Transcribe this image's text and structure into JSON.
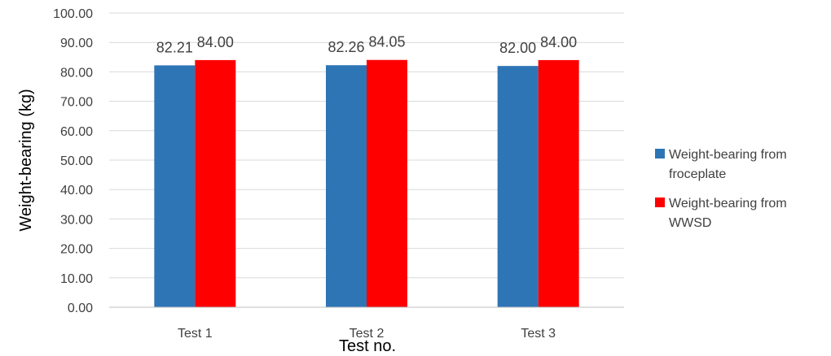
{
  "chart_data": {
    "type": "bar",
    "categories": [
      "Test 1",
      "Test 2",
      "Test 3"
    ],
    "series": [
      {
        "name": "Weight-bearing from froceplate",
        "legend_lines": [
          "Weight-bearing from",
          "froceplate"
        ],
        "values": [
          82.21,
          82.26,
          82.0
        ],
        "labels": [
          "82.21",
          "82.26",
          "82.00"
        ],
        "color": "#2E75B6"
      },
      {
        "name": "Weight-bearing from WWSD",
        "legend_lines": [
          "Weight-bearing from",
          "WWSD"
        ],
        "values": [
          84.0,
          84.05,
          84.0
        ],
        "labels": [
          "84.00",
          "84.05",
          "84.00"
        ],
        "color": "#FF0000"
      }
    ],
    "xlabel": "Test no.",
    "ylabel": "Weight-bearing (kg)",
    "ylim": [
      0,
      100
    ],
    "yticks": [
      "0.00",
      "10.00",
      "20.00",
      "30.00",
      "40.00",
      "50.00",
      "60.00",
      "70.00",
      "80.00",
      "90.00",
      "100.00"
    ],
    "grid": true,
    "legend_position": "right"
  }
}
